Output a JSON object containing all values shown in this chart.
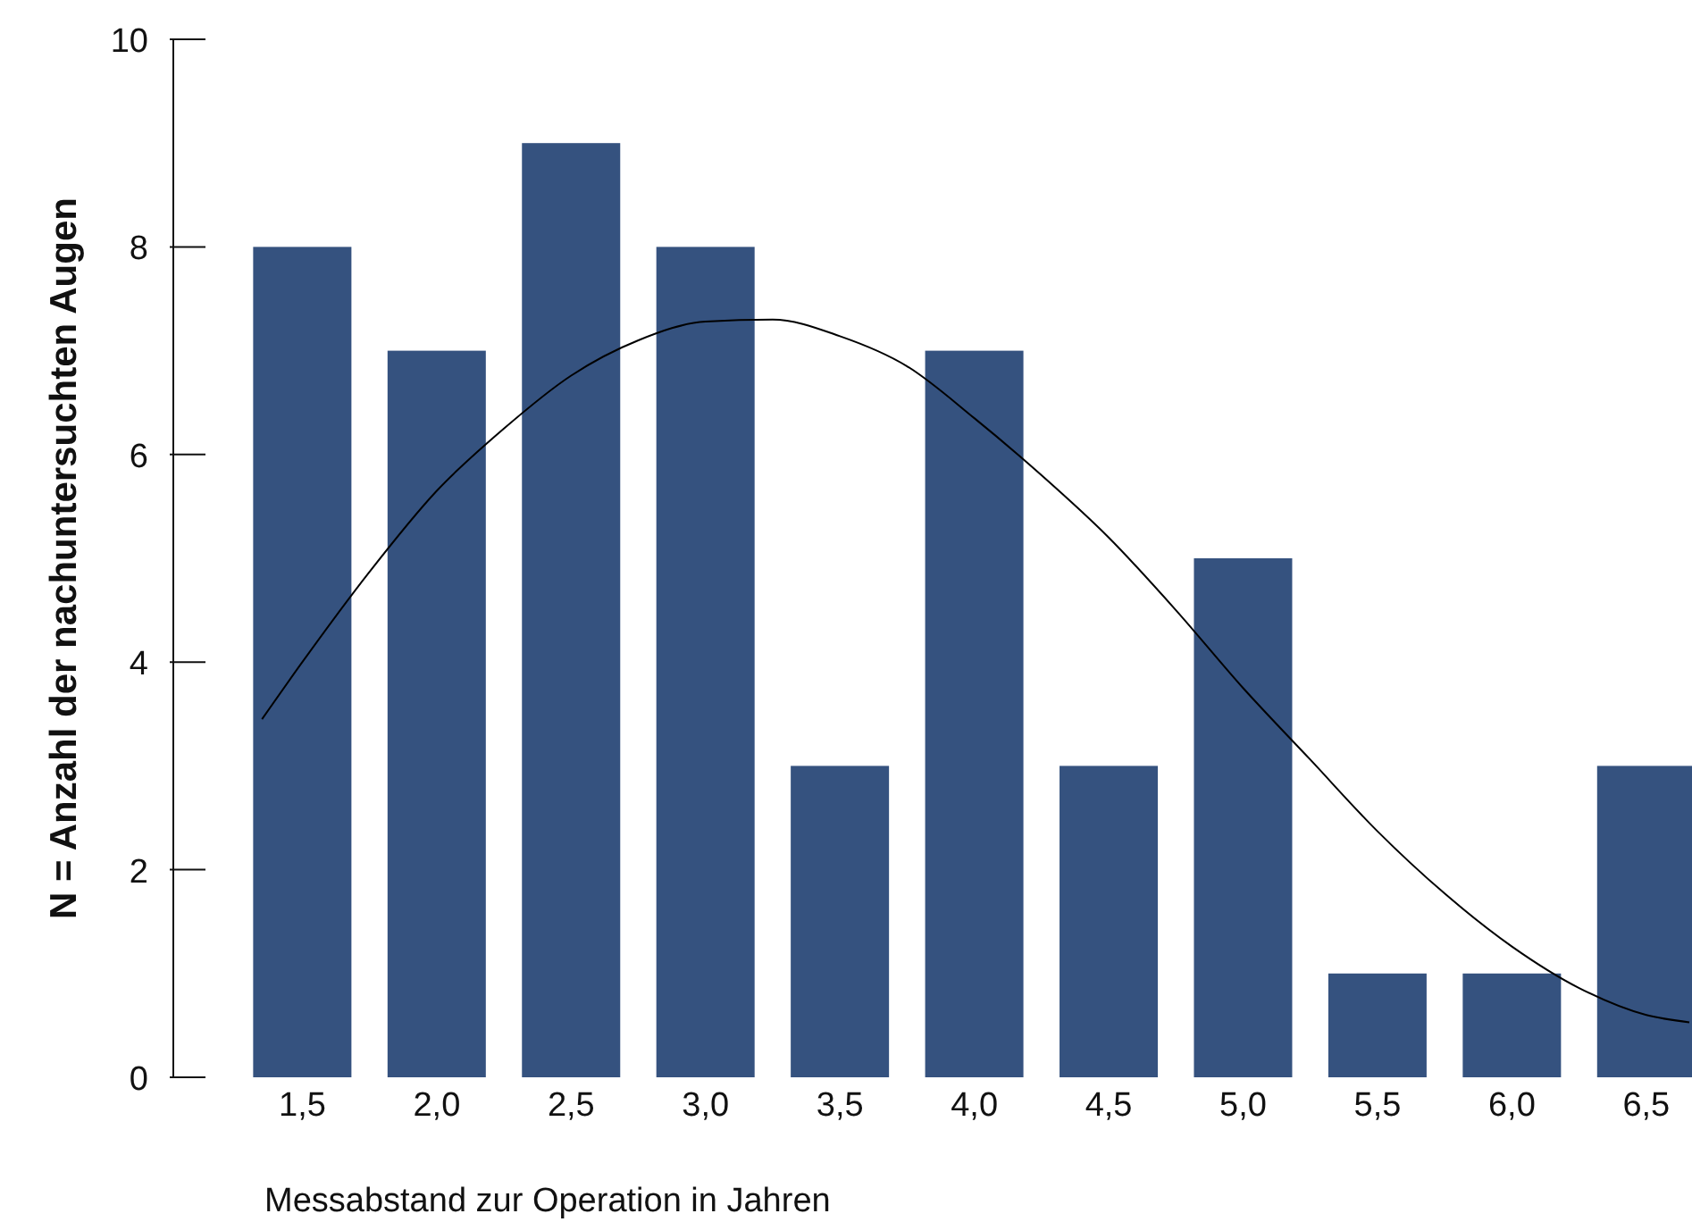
{
  "chart_data": {
    "type": "bar",
    "xlabel": "Messabstand zur Operation in Jahren",
    "ylabel": "N = Anzahl der nachuntersuchten Augen",
    "x": [
      1.5,
      2.0,
      2.5,
      3.0,
      3.5,
      4.0,
      4.5,
      5.0,
      5.5,
      6.0,
      6.5
    ],
    "series": [
      {
        "color": "#35527f",
        "values": [
          8,
          7,
          9,
          8,
          3,
          7,
          3,
          5,
          1,
          1,
          3
        ]
      },
      {
        "type": "line",
        "color": "#000000",
        "x": [
          1.35,
          1.5,
          1.75,
          2.0,
          2.25,
          2.5,
          2.75,
          3.0,
          3.25,
          3.5,
          3.75,
          4.0,
          4.25,
          4.5,
          4.75,
          5.0,
          5.25,
          5.5,
          5.75,
          6.0,
          6.25,
          6.5,
          6.66
        ],
        "values": [
          3.45,
          4.0,
          4.87,
          5.65,
          6.25,
          6.76,
          7.1,
          7.28,
          7.3,
          7.14,
          6.85,
          6.35,
          5.8,
          5.2,
          4.5,
          3.75,
          3.06,
          2.37,
          1.77,
          1.26,
          0.86,
          0.6,
          0.53
        ]
      }
    ],
    "xlim": [
      1.02,
      6.67
    ],
    "xticks": [
      {
        "value": 1.5,
        "label": "1,5"
      },
      {
        "value": 2,
        "label": "2,0"
      },
      {
        "value": 2.5,
        "label": "2,5"
      },
      {
        "value": 3,
        "label": "3,0"
      },
      {
        "value": 3.5,
        "label": "3,5"
      },
      {
        "value": 4,
        "label": "4,0"
      },
      {
        "value": 4.5,
        "label": "4,5"
      },
      {
        "value": 5,
        "label": "5,0"
      },
      {
        "value": 5.5,
        "label": "5,5"
      },
      {
        "value": 6,
        "label": "6,0"
      },
      {
        "value": 6.5,
        "label": "6,5"
      }
    ],
    "ylim": [
      0,
      10
    ],
    "yticks": [
      0,
      2,
      4,
      6,
      8,
      10
    ],
    "grid": false,
    "legend": false,
    "marker": "none",
    "line_style": "solid"
  }
}
